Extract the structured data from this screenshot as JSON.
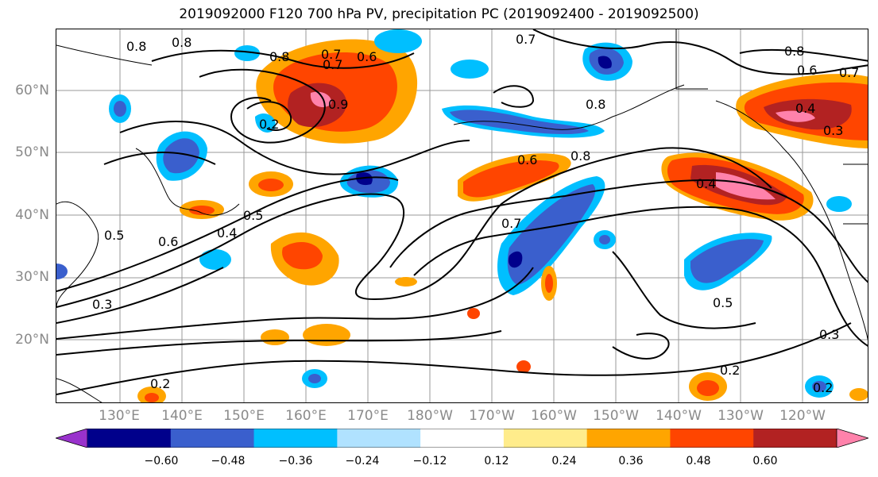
{
  "title": "2019092000 F120 700 hPa PV, precipitation PC (2019092400 - 2019092500)",
  "map": {
    "lat_labels": [
      "60°N",
      "50°N",
      "40°N",
      "30°N",
      "20°N"
    ],
    "lon_labels": [
      "130°E",
      "140°E",
      "150°E",
      "160°E",
      "170°E",
      "180°W",
      "170°W",
      "160°W",
      "150°W",
      "140°W",
      "130°W",
      "120°W"
    ],
    "contour_labels": [
      "0.8",
      "0.8",
      "0.8",
      "0.7",
      "0.6",
      "0.7",
      "0.9",
      "0.2",
      "0.8",
      "0.7",
      "0.8",
      "0.6",
      "0.7",
      "0.4",
      "0.3",
      "0.6",
      "0.8",
      "0.4",
      "0.7",
      "0.5",
      "0.4",
      "0.5",
      "0.6",
      "0.5",
      "0.3",
      "0.2",
      "0.2",
      "0.3",
      "0.2"
    ]
  },
  "colorbar": {
    "tick_labels": [
      "−0.60",
      "−0.48",
      "−0.36",
      "−0.24",
      "−0.12",
      "0.12",
      "0.24",
      "0.36",
      "0.48",
      "0.60"
    ],
    "colors": [
      "#9932cc",
      "#00008b",
      "#3a5fcd",
      "#00bfff",
      "#b0e2ff",
      "#ffffff",
      "#ffec8b",
      "#ffa500",
      "#ff4500",
      "#b22222",
      "#ff82ab"
    ]
  }
}
